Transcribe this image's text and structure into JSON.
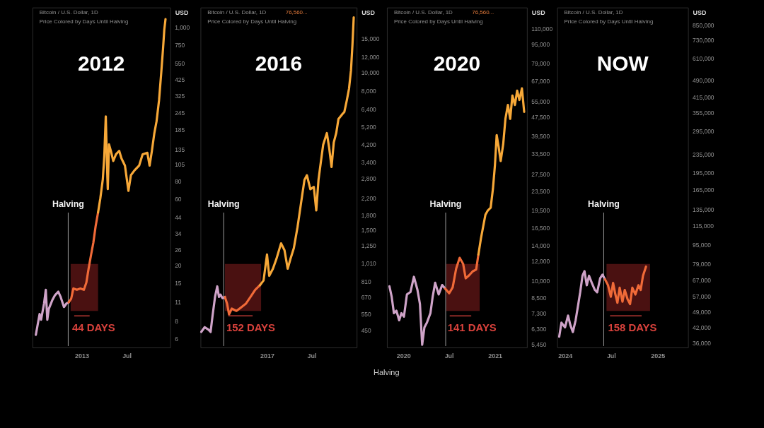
{
  "chart_data": [
    {
      "type": "line",
      "title": "2012",
      "annotations": [
        "Bitcoin / U.S. Dollar, 1D",
        "Price Colored by Days Until Halving"
      ],
      "ylabel": "USD",
      "log": true,
      "xlim": [
        "2012-06-17",
        "2013-12-23"
      ],
      "xticks": [
        {
          "value": "2013-01-01",
          "label": "2013"
        },
        {
          "value": "2013-07-01",
          "label": "Jul"
        }
      ],
      "ylim": [
        5.2,
        1380
      ],
      "yticks": [
        6,
        8,
        11,
        15,
        20,
        26,
        34,
        44,
        60,
        80,
        105,
        135,
        185,
        245,
        325,
        425,
        550,
        750,
        {
          "value": 1000,
          "label": "1,000"
        }
      ],
      "ref_lines": [
        {
          "axis": "x",
          "value": "2012-11-08",
          "label": "Halving",
          "color": "#9a9a9a"
        }
      ],
      "bands": [
        {
          "axis": "x",
          "from": "2012-11-18",
          "to": "2013-03-08",
          "label": "44 DAYS",
          "color": "#521313"
        }
      ],
      "series": [
        {
          "color": "#cfa3c8",
          "x": [
            "2012-07-01",
            "2012-07-16",
            "2012-07-22",
            "2012-08-03",
            "2012-08-10",
            "2012-08-16",
            "2012-08-22",
            "2012-09-05",
            "2012-09-15",
            "2012-09-29",
            "2012-10-08",
            "2012-10-22",
            "2012-11-01",
            "2012-11-10"
          ],
          "values": [
            6.4,
            9.0,
            8.2,
            10.7,
            13.4,
            8.2,
            9.8,
            11.3,
            12.2,
            13.0,
            12.0,
            10.1,
            10.7,
            10.9
          ]
        },
        {
          "color": "#f06a38",
          "x": [
            "2012-11-10",
            "2012-11-20",
            "2012-11-29",
            "2012-12-13",
            "2012-12-27",
            "2013-01-10",
            "2013-01-20",
            "2013-01-29",
            "2013-02-08",
            "2013-02-17",
            "2013-02-26",
            "2013-03-08"
          ],
          "values": [
            10.9,
            11.6,
            13.7,
            13.4,
            13.7,
            13.4,
            15.1,
            19.0,
            23.9,
            29.0,
            37.9,
            47.7
          ]
        },
        {
          "color": "#f7a838",
          "x": [
            "2013-03-08",
            "2013-03-17",
            "2013-03-27",
            "2013-04-02",
            "2013-04-08",
            "2013-04-13",
            "2013-04-16",
            "2013-04-21",
            "2013-04-29",
            "2013-05-08",
            "2013-05-19",
            "2013-06-01",
            "2013-06-10",
            "2013-06-24",
            "2013-07-08",
            "2013-07-18",
            "2013-08-01",
            "2013-08-20",
            "2013-09-03",
            "2013-09-22",
            "2013-10-01",
            "2013-10-10",
            "2013-10-20",
            "2013-10-29",
            "2013-11-08",
            "2013-11-17",
            "2013-11-24",
            "2013-11-29",
            "2013-12-04"
          ],
          "values": [
            47.7,
            60,
            82,
            120,
            231,
            103,
            70,
            146,
            130,
            111,
            124,
            131,
            116,
            103,
            68,
            88,
            95,
            103,
            124,
            127,
            103,
            130,
            175,
            213,
            301,
            478,
            700,
            955,
            1140
          ]
        }
      ]
    },
    {
      "type": "line",
      "title": "2016",
      "annotations": [
        "Bitcoin / U.S. Dollar, 1D",
        "Price Colored by Days Until Halving",
        "76,560..."
      ],
      "ylabel": "USD",
      "log": true,
      "xlim": [
        "2016-04-06",
        "2017-12-31"
      ],
      "xticks": [
        {
          "value": "2017-01-01",
          "label": "2017"
        },
        {
          "value": "2017-07-01",
          "label": "Jul"
        }
      ],
      "ylim": [
        367,
        21700
      ],
      "yticks": [
        450,
        550,
        670,
        810,
        {
          "value": 1010,
          "label": "1,010"
        },
        {
          "value": 1250,
          "label": "1,250"
        },
        {
          "value": 1500,
          "label": "1,500"
        },
        {
          "value": 1800,
          "label": "1,800"
        },
        {
          "value": 2200,
          "label": "2,200"
        },
        {
          "value": 2800,
          "label": "2,800"
        },
        {
          "value": 3400,
          "label": "3,400"
        },
        {
          "value": 4200,
          "label": "4,200"
        },
        {
          "value": 5200,
          "label": "5,200"
        },
        {
          "value": 6400,
          "label": "6,400"
        },
        {
          "value": 8000,
          "label": "8,000"
        },
        {
          "value": 10000,
          "label": "10,000"
        },
        {
          "value": 12000,
          "label": "12,000"
        },
        {
          "value": 15000,
          "label": "15,000"
        }
      ],
      "ref_lines": [
        {
          "axis": "x",
          "value": "2016-07-09",
          "label": "Halving",
          "color": "#9a9a9a"
        }
      ],
      "bands": [
        {
          "axis": "x",
          "from": "2016-07-14",
          "to": "2016-12-08",
          "label": "152 DAYS",
          "color": "#521313"
        }
      ],
      "series": [
        {
          "color": "#cfa3c8",
          "x": [
            "2016-04-09",
            "2016-04-23",
            "2016-05-08",
            "2016-05-17",
            "2016-05-25",
            "2016-06-04",
            "2016-06-13",
            "2016-06-20",
            "2016-06-26",
            "2016-07-04",
            "2016-07-14"
          ],
          "values": [
            442,
            468,
            455,
            442,
            538,
            673,
            764,
            673,
            692,
            664,
            673
          ]
        },
        {
          "color": "#f06a38",
          "x": [
            "2016-07-14",
            "2016-07-23",
            "2016-07-31",
            "2016-08-11",
            "2016-08-30",
            "2016-09-18",
            "2016-10-07",
            "2016-10-26",
            "2016-11-14",
            "2016-12-03"
          ],
          "values": [
            673,
            620,
            546,
            585,
            569,
            594,
            620,
            673,
            733,
            774
          ]
        },
        {
          "color": "#f7a838",
          "x": [
            "2016-12-03",
            "2016-12-18",
            "2017-01-01",
            "2017-01-10",
            "2017-01-25",
            "2017-02-08",
            "2017-02-27",
            "2017-03-13",
            "2017-03-26",
            "2017-04-06",
            "2017-04-20",
            "2017-05-05",
            "2017-05-19",
            "2017-06-02",
            "2017-06-12",
            "2017-06-26",
            "2017-07-10",
            "2017-07-20",
            "2017-07-29",
            "2017-08-08",
            "2017-08-17",
            "2017-09-01",
            "2017-09-10",
            "2017-09-20",
            "2017-09-29",
            "2017-10-09",
            "2017-10-18",
            "2017-11-02",
            "2017-11-11",
            "2017-11-21",
            "2017-11-30",
            "2017-12-08",
            "2017-12-14",
            "2017-12-19"
          ],
          "values": [
            774,
            820,
            1120,
            867,
            944,
            1060,
            1280,
            1180,
            944,
            1060,
            1210,
            1560,
            2070,
            2740,
            2900,
            2450,
            2520,
            1900,
            2740,
            3430,
            4180,
            4810,
            4060,
            3200,
            4300,
            4810,
            5690,
            6020,
            6200,
            7130,
            8200,
            10250,
            14000,
            19300
          ]
        }
      ]
    },
    {
      "type": "line",
      "title": "2020",
      "annotations": [
        "Bitcoin / U.S. Dollar, 1D",
        "Price Colored by Days Until Halving",
        "76,560..."
      ],
      "ylabel": "USD",
      "log": true,
      "xlim": [
        "2019-10-27",
        "2021-05-09"
      ],
      "xticks": [
        {
          "value": "2020-01-01",
          "label": "2020"
        },
        {
          "value": "2020-07-01",
          "label": "Jul"
        },
        {
          "value": "2021-01-01",
          "label": "2021"
        }
      ],
      "ylim": [
        5280,
        134600
      ],
      "yticks": [
        {
          "value": 5450,
          "label": "5,450"
        },
        {
          "value": 6300,
          "label": "6,300"
        },
        {
          "value": 7300,
          "label": "7,300"
        },
        {
          "value": 8500,
          "label": "8,500"
        },
        {
          "value": 10000,
          "label": "10,000"
        },
        {
          "value": 12000,
          "label": "12,000"
        },
        {
          "value": 14000,
          "label": "14,000"
        },
        {
          "value": 16500,
          "label": "16,500"
        },
        {
          "value": 19500,
          "label": "19,500"
        },
        {
          "value": 23500,
          "label": "23,500"
        },
        {
          "value": 27500,
          "label": "27,500"
        },
        {
          "value": 33500,
          "label": "33,500"
        },
        {
          "value": 39500,
          "label": "39,500"
        },
        {
          "value": 47500,
          "label": "47,500"
        },
        {
          "value": 55000,
          "label": "55,000"
        },
        {
          "value": 67000,
          "label": "67,000"
        },
        {
          "value": 79000,
          "label": "79,000"
        },
        {
          "value": 95000,
          "label": "95,000"
        },
        {
          "value": 110000,
          "label": "110,000"
        }
      ],
      "ref_lines": [
        {
          "axis": "x",
          "value": "2020-06-18",
          "label": "Halving",
          "color": "#9a9a9a"
        }
      ],
      "bands": [
        {
          "axis": "x",
          "from": "2020-06-20",
          "to": "2020-11-01",
          "label": "141 DAYS",
          "color": "#521313"
        }
      ],
      "series": [
        {
          "color": "#cfa3c8",
          "x": [
            "2019-11-06",
            "2019-11-15",
            "2019-11-24",
            "2019-12-04",
            "2019-12-15",
            "2019-12-24",
            "2020-01-03",
            "2020-01-15",
            "2020-01-29",
            "2020-02-12",
            "2020-02-26",
            "2020-03-07",
            "2020-03-16",
            "2020-03-25",
            "2020-04-04",
            "2020-04-18",
            "2020-04-27",
            "2020-05-07",
            "2020-05-21",
            "2020-06-04",
            "2020-06-16"
          ],
          "values": [
            9460,
            8560,
            7320,
            7490,
            6840,
            7320,
            7080,
            8750,
            8950,
            10350,
            9150,
            8000,
            5420,
            6400,
            6690,
            7320,
            8560,
            9780,
            8750,
            9570,
            9250
          ]
        },
        {
          "color": "#f06a38",
          "x": [
            "2020-06-16",
            "2020-07-02",
            "2020-07-16",
            "2020-07-30",
            "2020-08-13",
            "2020-08-27",
            "2020-09-06",
            "2020-09-20",
            "2020-10-04",
            "2020-10-18",
            "2020-10-27"
          ],
          "values": [
            9250,
            8850,
            9360,
            11200,
            12400,
            11700,
            10200,
            10500,
            10900,
            11100,
            12800
          ]
        },
        {
          "color": "#f7a838",
          "x": [
            "2020-10-27",
            "2020-11-06",
            "2020-11-15",
            "2020-11-24",
            "2020-12-04",
            "2020-12-15",
            "2020-12-24",
            "2021-01-01",
            "2021-01-08",
            "2021-01-16",
            "2021-01-24",
            "2021-02-03",
            "2021-02-12",
            "2021-02-22",
            "2021-03-03",
            "2021-03-12",
            "2021-03-22",
            "2021-03-31",
            "2021-04-09",
            "2021-04-19",
            "2021-04-28"
          ],
          "values": [
            12800,
            14900,
            16700,
            18700,
            19500,
            20000,
            23900,
            29900,
            39900,
            35600,
            31200,
            36500,
            46600,
            53200,
            46600,
            58200,
            53200,
            61000,
            55800,
            62300,
            49800
          ]
        }
      ]
    },
    {
      "type": "line",
      "title": "NOW",
      "annotations": [
        "Bitcoin / U.S. Dollar, 1D",
        "Price Colored by Days Until Halving"
      ],
      "ylabel": "USD",
      "log": true,
      "xlim": [
        "2023-12-01",
        "2025-05-01"
      ],
      "xticks": [
        {
          "value": "2024-01-01",
          "label": "2024"
        },
        {
          "value": "2024-07-01",
          "label": "Jul"
        },
        {
          "value": "2025-01-01",
          "label": "2025"
        }
      ],
      "ylim": [
        34300,
        1010000
      ],
      "yticks": [
        {
          "value": 36000,
          "label": "36,000"
        },
        {
          "value": 42000,
          "label": "42,000"
        },
        {
          "value": 49000,
          "label": "49,000"
        },
        {
          "value": 57000,
          "label": "57,000"
        },
        {
          "value": 67000,
          "label": "67,000"
        },
        {
          "value": 79000,
          "label": "79,000"
        },
        {
          "value": 95000,
          "label": "95,000"
        },
        {
          "value": 115000,
          "label": "115,000"
        },
        {
          "value": 135000,
          "label": "135,000"
        },
        {
          "value": 165000,
          "label": "165,000"
        },
        {
          "value": 195000,
          "label": "195,000"
        },
        {
          "value": 235000,
          "label": "235,000"
        },
        {
          "value": 295000,
          "label": "295,000"
        },
        {
          "value": 355000,
          "label": "355,000"
        },
        {
          "value": 415000,
          "label": "415,000"
        },
        {
          "value": 490000,
          "label": "490,000"
        },
        {
          "value": 610000,
          "label": "610,000"
        },
        {
          "value": 730000,
          "label": "730,000"
        },
        {
          "value": 850000,
          "label": "850,000"
        }
      ],
      "ref_lines": [
        {
          "axis": "x",
          "value": "2024-06-02",
          "label": "Halving",
          "color": "#9a9a9a"
        }
      ],
      "bands": [
        {
          "axis": "x",
          "from": "2024-06-13",
          "to": "2024-12-02",
          "label": "158 DAYS",
          "color": "#521313"
        }
      ],
      "series": [
        {
          "color": "#cfa3c8",
          "x": [
            "2023-12-09",
            "2023-12-18",
            "2024-01-01",
            "2024-01-13",
            "2024-01-22",
            "2024-02-01",
            "2024-02-12",
            "2024-02-21",
            "2024-03-01",
            "2024-03-10",
            "2024-03-18",
            "2024-03-27",
            "2024-04-05",
            "2024-04-16",
            "2024-04-28",
            "2024-05-07",
            "2024-05-19",
            "2024-05-28",
            "2024-06-07"
          ],
          "values": [
            38200,
            43900,
            41900,
            47100,
            42900,
            40000,
            45000,
            51600,
            59400,
            70000,
            73300,
            63700,
            70000,
            65200,
            60800,
            59400,
            68400,
            70800,
            67600
          ]
        },
        {
          "color": "#f06a38",
          "x": [
            "2024-06-07",
            "2024-06-19",
            "2024-06-30",
            "2024-07-09",
            "2024-07-18",
            "2024-07-26",
            "2024-08-04",
            "2024-08-15",
            "2024-08-24",
            "2024-09-04",
            "2024-09-14",
            "2024-09-23",
            "2024-10-05",
            "2024-10-17",
            "2024-10-26",
            "2024-11-04",
            "2024-11-16"
          ],
          "values": [
            67600,
            63700,
            56800,
            65200,
            58100,
            53500,
            62200,
            54100,
            60800,
            55500,
            52800,
            62200,
            58100,
            63700,
            60800,
            70000,
            76700
          ]
        }
      ]
    },
    {
      "type": "other",
      "annotations": [
        "Halving"
      ]
    }
  ]
}
